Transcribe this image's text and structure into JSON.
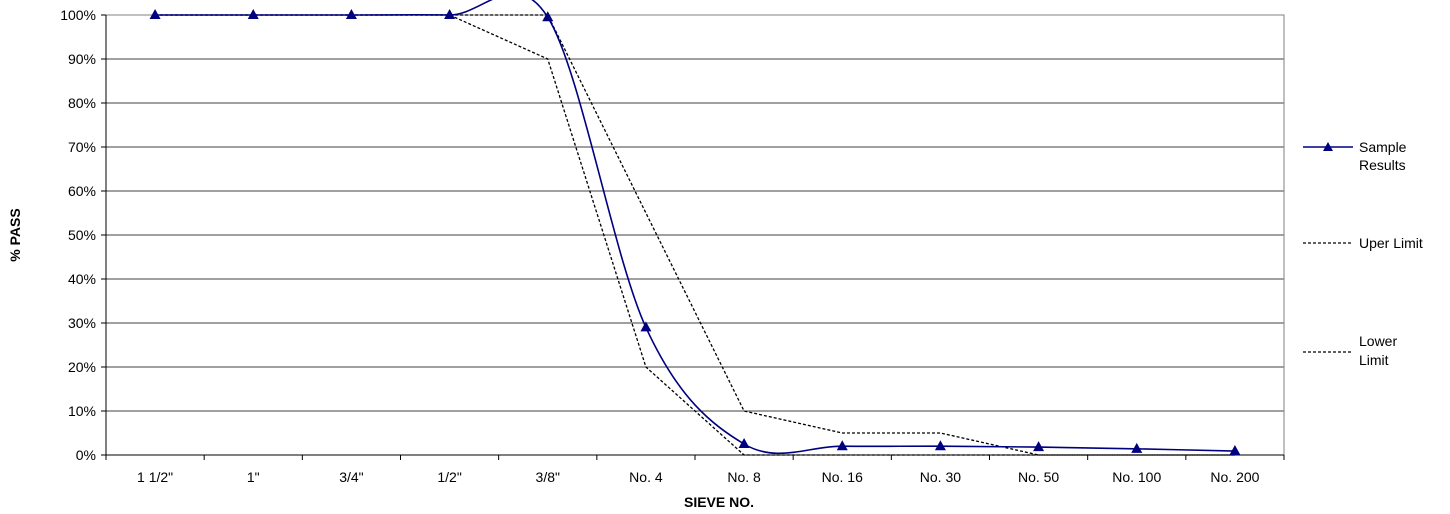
{
  "chart_data": {
    "type": "line",
    "title": "",
    "xlabel": "SIEVE NO.",
    "ylabel": "% PASS",
    "categories": [
      "1 1/2\"",
      "1\"",
      "3/4\"",
      "1/2\"",
      "3/8\"",
      "No. 4",
      "No. 8",
      "No. 16",
      "No. 30",
      "No. 50",
      "No. 100",
      "No. 200"
    ],
    "ylim": [
      0,
      100
    ],
    "yticks": [
      "0%",
      "10%",
      "20%",
      "30%",
      "40%",
      "50%",
      "60%",
      "70%",
      "80%",
      "90%",
      "100%"
    ],
    "grid": true,
    "legend_position": "right",
    "series": [
      {
        "name": "Sample Results",
        "values": [
          100,
          100,
          100,
          100,
          99.5,
          29,
          2.5,
          2,
          2,
          1.8,
          1.4,
          0.9
        ],
        "color": "#000080",
        "style": "solid",
        "marker": "triangle",
        "smooth": true
      },
      {
        "name": "Uper Limit",
        "values": [
          100,
          100,
          100,
          100,
          100,
          55,
          10,
          5,
          5,
          0,
          0,
          0
        ],
        "color": "#000000",
        "style": "dashed",
        "marker": "none",
        "smooth": false
      },
      {
        "name": "Lower Limit",
        "values": [
          100,
          100,
          100,
          100,
          90,
          20,
          0,
          0,
          0,
          0,
          0,
          0
        ],
        "color": "#000000",
        "style": "dashed",
        "marker": "none",
        "smooth": false
      }
    ]
  },
  "legend": {
    "items": [
      {
        "line1": "Sample",
        "line2": "Results"
      },
      {
        "line1": "Uper Limit",
        "line2": ""
      },
      {
        "line1": "Lower",
        "line2": "Limit"
      }
    ]
  }
}
